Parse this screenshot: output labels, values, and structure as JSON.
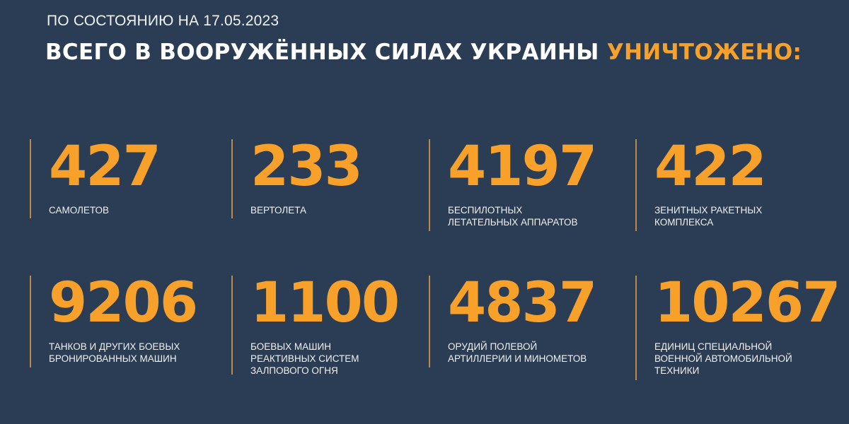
{
  "header": {
    "as_of": "ПО СОСТОЯНИЮ НА 17.05.2023",
    "title_main": "ВСЕГО В ВООРУЖЁННЫХ СИЛАХ УКРАИНЫ",
    "title_highlight": "УНИЧТОЖЕНО:"
  },
  "colors": {
    "background": "#2b3d54",
    "accent": "#f7a12a",
    "text": "#ffffff"
  },
  "stats": [
    {
      "value": "427",
      "label_lines": [
        "САМОЛЕТОВ"
      ]
    },
    {
      "value": "233",
      "label_lines": [
        "ВЕРТОЛЕТА"
      ]
    },
    {
      "value": "4197",
      "label_lines": [
        "БЕСПИЛОТНЫХ",
        "ЛЕТАТЕЛЬНЫХ АППАРАТОВ"
      ]
    },
    {
      "value": "422",
      "label_lines": [
        "ЗЕНИТНЫХ РАКЕТНЫХ",
        "КОМПЛЕКСА"
      ]
    },
    {
      "value": "9206",
      "label_lines": [
        "ТАНКОВ И ДРУГИХ БОЕВЫХ",
        "БРОНИРОВАННЫХ МАШИН"
      ]
    },
    {
      "value": "1100",
      "label_lines": [
        "БОЕВЫХ МАШИН",
        "РЕАКТИВНЫХ СИСТЕМ",
        "ЗАЛПОВОГО ОГНЯ"
      ]
    },
    {
      "value": "4837",
      "label_lines": [
        "ОРУДИЙ ПОЛЕВОЙ",
        "АРТИЛЛЕРИИ И МИНОМЕТОВ"
      ]
    },
    {
      "value": "10267",
      "label_lines": [
        "ЕДИНИЦ СПЕЦИАЛЬНОЙ",
        "ВОЕННОЙ АВТОМОБИЛЬНОЙ",
        "ТЕХНИКИ"
      ]
    }
  ]
}
